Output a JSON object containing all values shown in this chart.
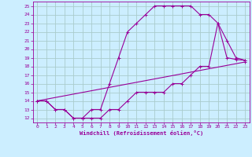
{
  "bg_color": "#cceeff",
  "grid_color": "#aacccc",
  "line_color": "#990099",
  "xlabel": "Windchill (Refroidissement éolien,°C)",
  "xlim": [
    -0.5,
    23.5
  ],
  "ylim": [
    11.5,
    25.5
  ],
  "xticks": [
    0,
    1,
    2,
    3,
    4,
    5,
    6,
    7,
    8,
    9,
    10,
    11,
    12,
    13,
    14,
    15,
    16,
    17,
    18,
    19,
    20,
    21,
    22,
    23
  ],
  "yticks": [
    12,
    13,
    14,
    15,
    16,
    17,
    18,
    19,
    20,
    21,
    22,
    23,
    24,
    25
  ],
  "curve1_x": [
    0,
    1,
    2,
    3,
    4,
    5,
    6,
    7,
    8,
    9,
    10,
    11,
    12,
    13,
    14,
    15,
    16,
    17,
    18,
    19,
    20,
    21,
    22,
    23
  ],
  "curve1_y": [
    14,
    14,
    13,
    13,
    12,
    12,
    13,
    13,
    16,
    19,
    22,
    23,
    24,
    25,
    25,
    25,
    25,
    25,
    24,
    24,
    23,
    19,
    18.8,
    18.7
  ],
  "curve2_x": [
    0,
    1,
    2,
    3,
    4,
    5,
    6,
    7,
    8,
    9,
    10,
    11,
    12,
    13,
    14,
    15,
    16,
    17,
    18,
    19,
    20,
    21,
    22,
    23
  ],
  "curve2_y": [
    14,
    14,
    13,
    13,
    12,
    12,
    12,
    12,
    13,
    13,
    14,
    15,
    15,
    15,
    15,
    16,
    16,
    17,
    18,
    18,
    23,
    21,
    19,
    18.7
  ],
  "curve3_x": [
    0,
    23
  ],
  "curve3_y": [
    14,
    18.5
  ]
}
